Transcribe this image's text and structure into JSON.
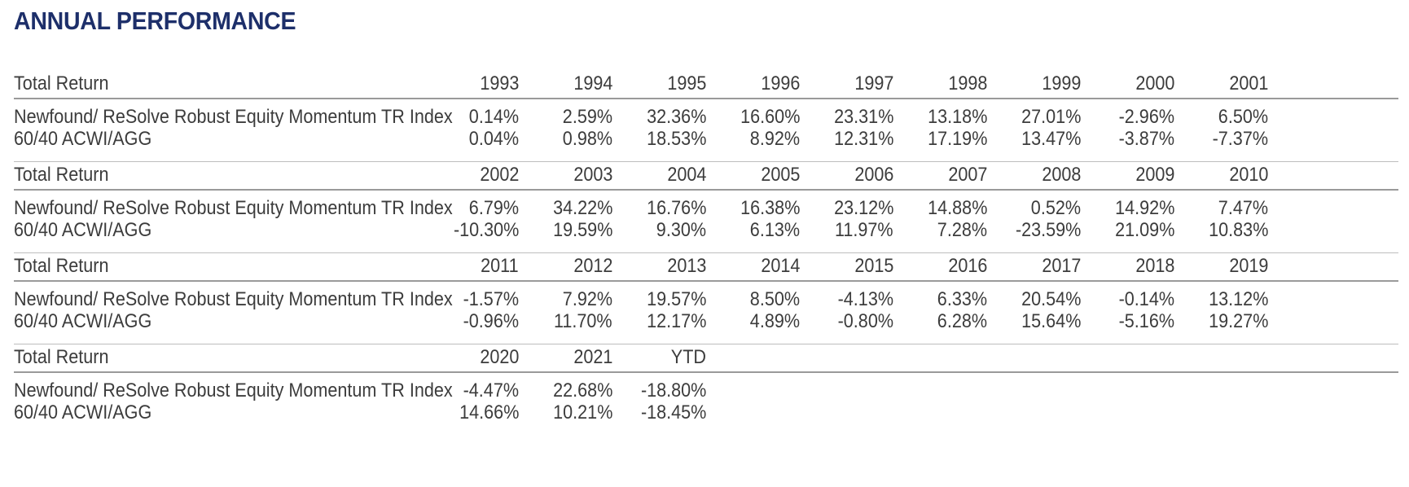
{
  "title": "ANNUAL PERFORMANCE",
  "blocks": [
    {
      "header_label": "Total Return",
      "years": [
        "1993",
        "1994",
        "1995",
        "1996",
        "1997",
        "1998",
        "1999",
        "2000",
        "2001"
      ],
      "rows": [
        {
          "label": "Newfound/ ReSolve Robust Equity Momentum TR Index",
          "values": [
            "0.14%",
            "2.59%",
            "32.36%",
            "16.60%",
            "23.31%",
            "13.18%",
            "27.01%",
            "-2.96%",
            "6.50%"
          ]
        },
        {
          "label": "60/40 ACWI/AGG",
          "values": [
            "0.04%",
            "0.98%",
            "18.53%",
            "8.92%",
            "12.31%",
            "17.19%",
            "13.47%",
            "-3.87%",
            "-7.37%"
          ]
        }
      ]
    },
    {
      "header_label": "Total Return",
      "years": [
        "2002",
        "2003",
        "2004",
        "2005",
        "2006",
        "2007",
        "2008",
        "2009",
        "2010"
      ],
      "rows": [
        {
          "label": "Newfound/ ReSolve Robust Equity Momentum TR Index",
          "values": [
            "6.79%",
            "34.22%",
            "16.76%",
            "16.38%",
            "23.12%",
            "14.88%",
            "0.52%",
            "14.92%",
            "7.47%"
          ]
        },
        {
          "label": "60/40 ACWI/AGG",
          "values": [
            "-10.30%",
            "19.59%",
            "9.30%",
            "6.13%",
            "11.97%",
            "7.28%",
            "-23.59%",
            "21.09%",
            "10.83%"
          ]
        }
      ]
    },
    {
      "header_label": "Total Return",
      "years": [
        "2011",
        "2012",
        "2013",
        "2014",
        "2015",
        "2016",
        "2017",
        "2018",
        "2019"
      ],
      "rows": [
        {
          "label": "Newfound/ ReSolve Robust Equity Momentum TR Index",
          "values": [
            "-1.57%",
            "7.92%",
            "19.57%",
            "8.50%",
            "-4.13%",
            "6.33%",
            "20.54%",
            "-0.14%",
            "13.12%"
          ]
        },
        {
          "label": "60/40 ACWI/AGG",
          "values": [
            "-0.96%",
            "11.70%",
            "12.17%",
            "4.89%",
            "-0.80%",
            "6.28%",
            "15.64%",
            "-5.16%",
            "19.27%"
          ]
        }
      ]
    },
    {
      "header_label": "Total Return",
      "years": [
        "2020",
        "2021",
        "YTD"
      ],
      "rows": [
        {
          "label": "Newfound/ ReSolve Robust Equity Momentum TR Index",
          "values": [
            "-4.47%",
            "22.68%",
            "-18.80%"
          ]
        },
        {
          "label": "60/40 ACWI/AGG",
          "values": [
            "14.66%",
            "10.21%",
            "-18.45%"
          ]
        }
      ]
    }
  ]
}
